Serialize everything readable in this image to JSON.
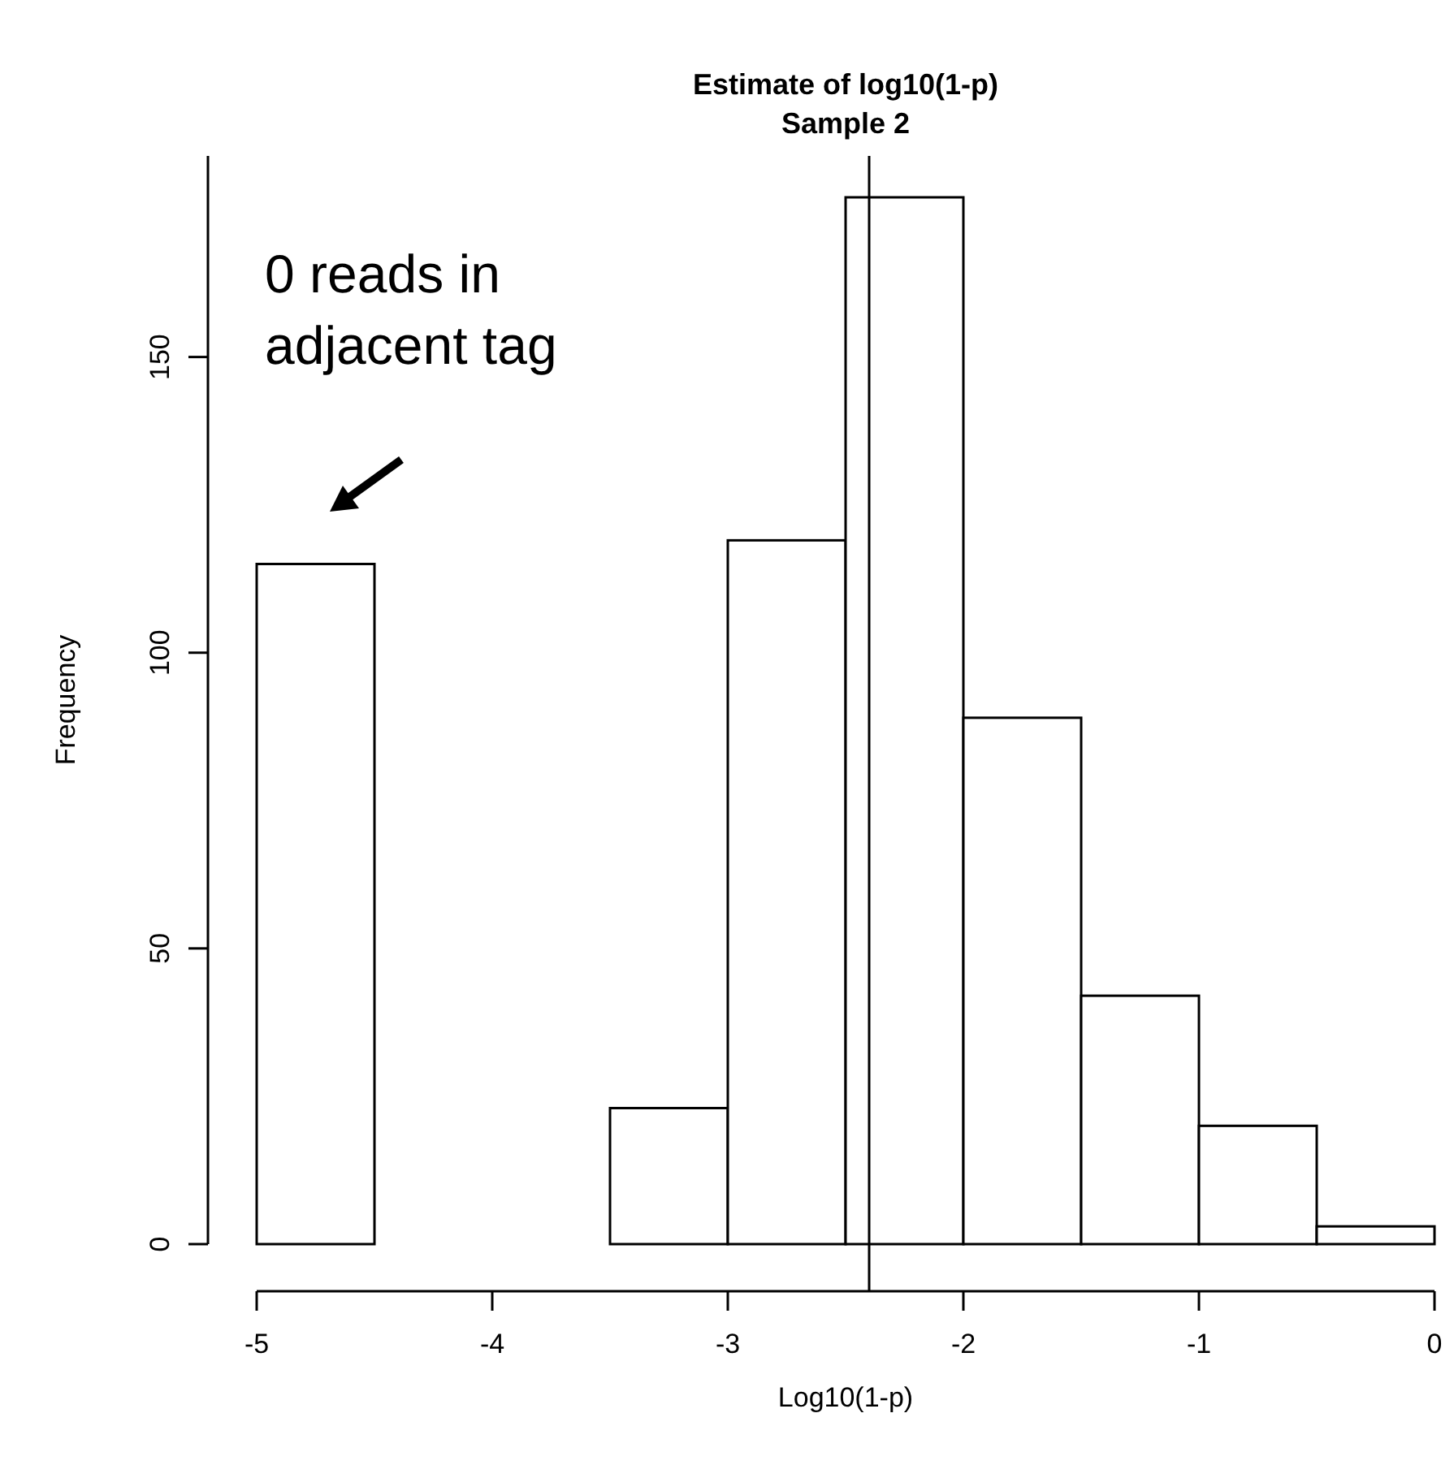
{
  "chart_data": {
    "type": "histogram",
    "title": "Estimate of log10(1-p)",
    "subtitle": "Sample 2",
    "xlabel": "Log10(1-p)",
    "ylabel": "Frequency",
    "bins": [
      -5,
      -4.5,
      -4,
      -3.5,
      -3,
      -2.5,
      -2,
      -1.5,
      -1,
      -0.5,
      0
    ],
    "values": [
      115,
      0,
      0,
      23,
      119,
      177,
      89,
      42,
      20,
      3
    ],
    "color": "#ffffff",
    "xlim": [
      -5,
      0
    ],
    "xticks": [
      -5,
      -4,
      -3,
      -2,
      -1,
      0
    ],
    "ylim": [
      0,
      184
    ],
    "yticks": [
      0,
      50,
      100,
      150
    ],
    "ref_lines": [
      {
        "axis": "x",
        "value": -2.4
      }
    ],
    "annotations": [
      "0 reads in adjacent tag"
    ]
  }
}
